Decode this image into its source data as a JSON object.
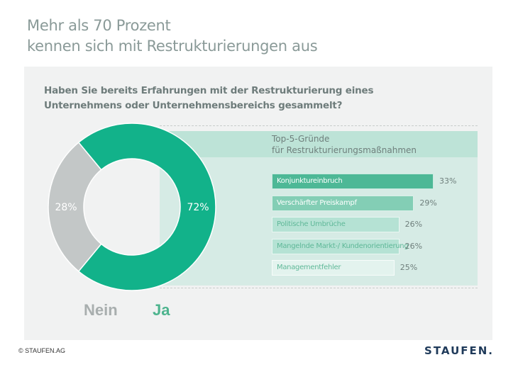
{
  "header": {
    "title_line1": "Mehr als 70 Prozent",
    "title_line2": "kennen sich mit Restrukturierungen aus"
  },
  "question": {
    "line1": "Haben Sie bereits Erfahrungen mit der Restrukturierung eines",
    "line2": "Unternehmens oder Unternehmensbereichs gesammelt?"
  },
  "colors": {
    "ja": "#12b28a",
    "nein": "#c3c7c7",
    "ja_text": "#4db48e",
    "nein_text": "#a8aeae",
    "logo": "#1f3a5a"
  },
  "chart_data": [
    {
      "type": "pie",
      "variant": "donut",
      "title": "Haben Sie bereits Erfahrungen mit der Restrukturierung eines Unternehmens oder Unternehmensbereichs gesammelt?",
      "categories": [
        "Ja",
        "Nein"
      ],
      "values": [
        72,
        28
      ],
      "labels": [
        "72%",
        "28%"
      ],
      "legend": [
        "Nein",
        "Ja"
      ],
      "legend_position": "bottom-left"
    },
    {
      "type": "bar",
      "orientation": "horizontal",
      "title_line1": "Top-5-Gründe",
      "title_line2": "für Restrukturierungsmaßnahmen",
      "categories": [
        "Konjunktureinbruch",
        "Verschärfter Preiskampf",
        "Politische Umbrüche",
        "Mangelnde Markt-/ Kundenorientierung",
        "Managementfehler"
      ],
      "values": [
        33,
        29,
        26,
        26,
        25
      ],
      "labels": [
        "33%",
        "29%",
        "26%",
        "26%",
        "25%"
      ],
      "bar_colors": [
        "#4db896",
        "#83ceb5",
        "#b5e2d4",
        "#b5e2d4",
        "#e3f3ee"
      ],
      "label_colors": [
        "#ffffff",
        "#ffffff",
        "#5fb898",
        "#5fb898",
        "#5fb898"
      ],
      "unit": "%"
    }
  ],
  "footer": {
    "copyright": "© STAUFEN.AG",
    "logo": "STAUFEN."
  }
}
